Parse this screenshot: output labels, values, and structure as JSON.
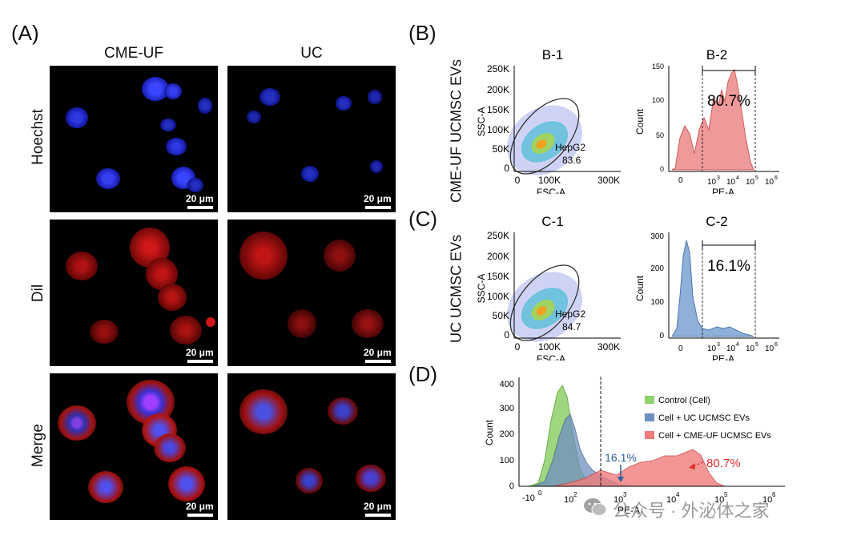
{
  "panel_labels": {
    "a": "(A)",
    "b": "(B)",
    "c": "(C)",
    "d": "(D)"
  },
  "panel_a": {
    "columns": [
      "CME-UF",
      "UC"
    ],
    "rows": [
      "Hoechst",
      "Dil",
      "Merge"
    ],
    "scale_bar": "20 μm"
  },
  "panel_b": {
    "row_label": "CME-UF UCMSC EVs",
    "titles": [
      "B-1",
      "B-2"
    ],
    "gate_name": "HepG2",
    "gate_value": "83.6",
    "percent": "80.7%"
  },
  "panel_c": {
    "row_label": "UC UCMSC EVs",
    "titles": [
      "C-1",
      "C-2"
    ],
    "gate_name": "HepG2",
    "gate_value": "84.7",
    "percent": "16.1%"
  },
  "scatter_axes": {
    "xlabel": "FSC-A",
    "ylabel": "SSC-A",
    "xticks": [
      "0",
      "100K",
      "300K"
    ],
    "yticks": [
      "0",
      "50K",
      "100K",
      "150K",
      "200K",
      "250K"
    ]
  },
  "hist_axes": {
    "xlabel": "PE-A",
    "ylabel": "Count",
    "xticks": [
      "0",
      "10",
      "10",
      "10",
      "10",
      "10"
    ],
    "xticks_exp": [
      "",
      "3",
      "4",
      "5",
      "6",
      ""
    ]
  },
  "b2_yticks": [
    "0",
    "50",
    "100",
    "150"
  ],
  "c2_yticks": [
    "0",
    "100",
    "200",
    "300"
  ],
  "d_axes": {
    "xlabel": "PE-A",
    "ylabel": "Count",
    "yticks": [
      "0",
      "100",
      "200",
      "300",
      "400"
    ],
    "xticks": [
      "-10",
      "10",
      "10",
      "10",
      "10",
      "10",
      "10"
    ],
    "xticks_exp": [
      "0",
      "2",
      "3",
      "4",
      "5",
      "6"
    ]
  },
  "legend": [
    "Control (Cell)",
    "Cell + UC UCMSC EVs",
    "Cell + CME-UF UCMSC EVs"
  ],
  "annotations": {
    "uc": "16.1%",
    "cme": "80.7%"
  },
  "colors": {
    "green": "#8fd16b",
    "blue": "#6f8fc0",
    "red": "#ef7b7b",
    "uc_text": "#2e5e9e",
    "cme_text": "#e22d2d"
  },
  "watermark": "公众号 · 外泌体之家",
  "chart_data": [
    {
      "type": "area",
      "title": "B-2",
      "xlabel": "PE-A",
      "ylabel": "Count",
      "ylim": [
        0,
        150
      ],
      "x": [
        0,
        1,
        2,
        3,
        4,
        5,
        6
      ],
      "series": [
        {
          "values": [
            0,
            20,
            60,
            120,
            130,
            40,
            0
          ]
        }
      ],
      "gated_percent": 80.7
    },
    {
      "type": "area",
      "title": "C-2",
      "xlabel": "PE-A",
      "ylabel": "Count",
      "ylim": [
        0,
        300
      ],
      "x": [
        0,
        1,
        2,
        3,
        4,
        5,
        6
      ],
      "series": [
        {
          "values": [
            0,
            290,
            30,
            25,
            20,
            5,
            0
          ]
        }
      ],
      "gated_percent": 16.1
    },
    {
      "type": "area",
      "title": "",
      "xlabel": "PE-A",
      "ylabel": "Count",
      "ylim": [
        0,
        420
      ],
      "x": [
        1,
        2,
        3,
        4,
        5,
        6
      ],
      "series": [
        {
          "name": "Control (Cell)",
          "values": [
            60,
            400,
            60,
            0,
            0,
            0
          ]
        },
        {
          "name": "Cell + UC UCMSC EVs",
          "values": [
            30,
            280,
            40,
            10,
            0,
            0
          ]
        },
        {
          "name": "Cell + CME-UF UCMSC EVs",
          "values": [
            0,
            20,
            60,
            140,
            20,
            0
          ]
        }
      ]
    }
  ]
}
